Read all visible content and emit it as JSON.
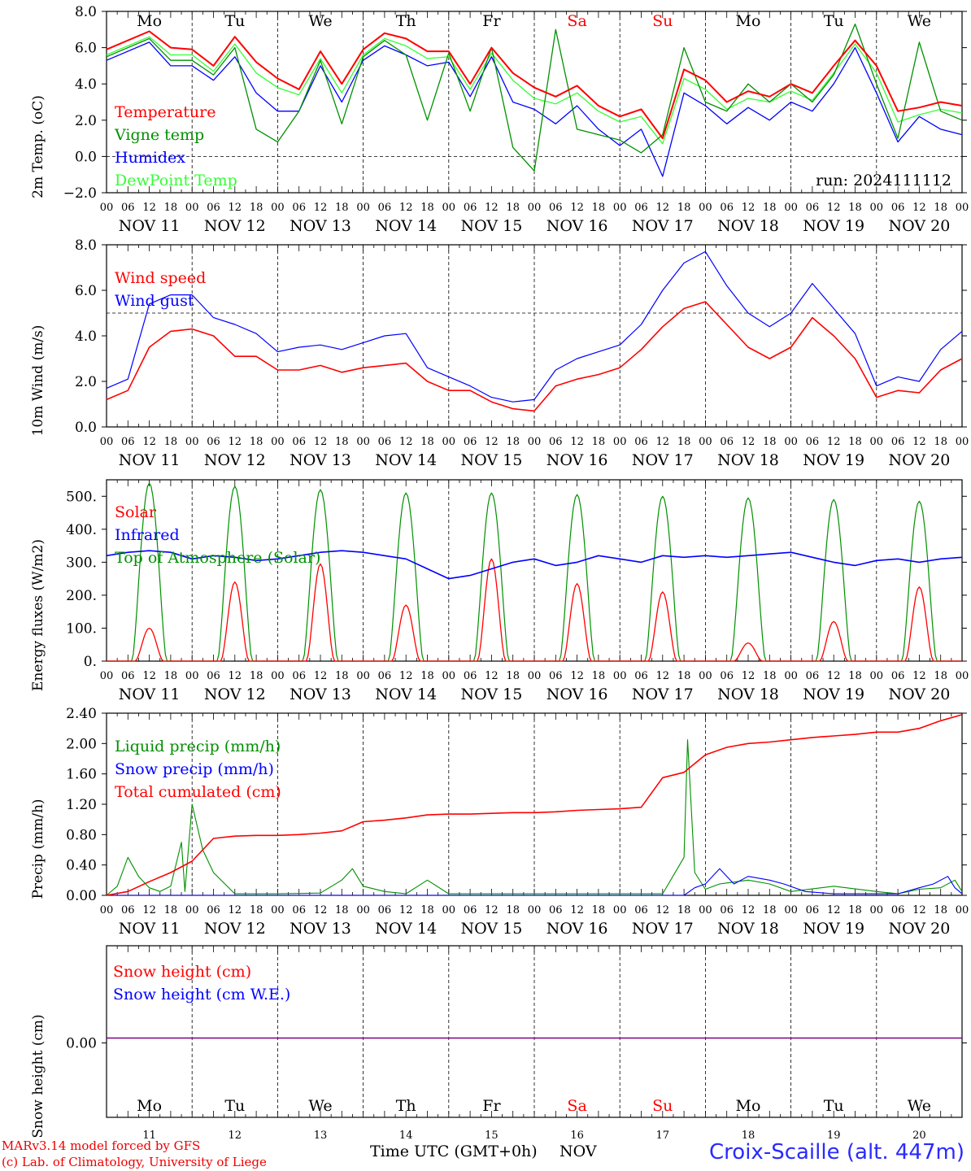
{
  "run_label": "run: 2024111112",
  "day_abbrevs": [
    "Mo",
    "Tu",
    "We",
    "Th",
    "Fr",
    "Sa",
    "Su",
    "Mo",
    "Tu",
    "We"
  ],
  "weekend_days": [
    5,
    6
  ],
  "date_labels": [
    "NOV 11",
    "NOV 12",
    "NOV 13",
    "NOV 14",
    "NOV 15",
    "NOV 16",
    "NOV 17",
    "NOV 18",
    "NOV 19",
    "NOV 20"
  ],
  "hour_labels": [
    "00",
    "06",
    "12",
    "18"
  ],
  "bottom_day_numbers": [
    "11",
    "12",
    "13",
    "14",
    "15",
    "16",
    "17",
    "18",
    "19",
    "20"
  ],
  "bottom_month": "NOV",
  "time_axis_label": "Time UTC (GMT+0h)",
  "credit_line1": "MARv3.14 model forced by GFS",
  "credit_line2": "(c) Lab. of Climatology, University of Liege",
  "station_label": "Croix-Scaille (alt. 447m)",
  "colors": {
    "red": "#ff0000",
    "green": "#009000",
    "blue": "#0000ff",
    "lightgreen": "#33ff33",
    "purple": "#800080"
  },
  "chart_data": [
    {
      "type": "line",
      "ylabel": "2m Temp. (oC)",
      "ylim": [
        -2,
        8
      ],
      "yticks": [
        "8.0",
        "6.0",
        "4.0",
        "2.0",
        "0.0",
        "−2.0"
      ],
      "ytick_values": [
        8,
        6,
        4,
        2,
        0,
        -2
      ],
      "hline": 0,
      "x": [
        0,
        12,
        18,
        24,
        30,
        36,
        42,
        48,
        54,
        60,
        66,
        72,
        78,
        84,
        90,
        96,
        102,
        108,
        114,
        120,
        126,
        132,
        138,
        144,
        150,
        156,
        162,
        168,
        174,
        180,
        186,
        192,
        198,
        204,
        210,
        216,
        222,
        228,
        234,
        240
      ],
      "x_unit": "hours since NOV 11 00 UTC",
      "series": [
        {
          "name": "Temperature",
          "color": "#ff0000",
          "values": [
            5.9,
            6.9,
            6.0,
            5.9,
            5.0,
            6.6,
            5.2,
            4.3,
            3.7,
            5.8,
            4.0,
            5.9,
            6.8,
            6.5,
            5.8,
            5.8,
            4.0,
            6.0,
            4.6,
            3.8,
            3.3,
            3.9,
            2.8,
            2.2,
            2.6,
            1.0,
            4.8,
            4.2,
            3.0,
            3.6,
            3.3,
            4.0,
            3.5,
            5.0,
            6.4,
            5.0,
            2.5,
            2.7,
            3.0,
            2.8
          ]
        },
        {
          "name": "Vigne temp",
          "color": "#009000",
          "values": [
            5.5,
            6.5,
            5.3,
            5.3,
            4.5,
            6.0,
            1.5,
            0.8,
            2.5,
            5.3,
            1.8,
            5.5,
            6.4,
            5.6,
            2.0,
            5.7,
            2.5,
            6.0,
            0.5,
            -0.8,
            7.0,
            1.5,
            1.2,
            0.9,
            0.2,
            1.2,
            6.0,
            3.0,
            2.5,
            4.0,
            3.0,
            4.0,
            3.0,
            4.5,
            7.3,
            4.0,
            1.0,
            6.3,
            2.5,
            2.0
          ]
        },
        {
          "name": "Humidex",
          "color": "#0000ff",
          "values": [
            5.3,
            6.3,
            5.0,
            5.0,
            4.2,
            5.5,
            3.5,
            2.5,
            2.5,
            5.0,
            3.0,
            5.3,
            6.1,
            5.6,
            5.0,
            5.2,
            3.3,
            5.5,
            3.0,
            2.6,
            1.8,
            2.8,
            1.5,
            0.6,
            1.5,
            -1.1,
            3.5,
            2.8,
            1.8,
            2.7,
            2.0,
            3.0,
            2.5,
            4.0,
            6.0,
            3.5,
            0.8,
            2.2,
            1.5,
            1.2
          ]
        },
        {
          "name": "DewPoint Temp",
          "color": "#33ff33",
          "values": [
            5.6,
            6.6,
            5.6,
            5.6,
            4.7,
            6.2,
            4.6,
            3.8,
            3.4,
            5.4,
            3.5,
            5.6,
            6.5,
            6.1,
            5.4,
            5.5,
            3.7,
            5.7,
            4.2,
            3.2,
            2.9,
            3.5,
            2.5,
            1.9,
            2.2,
            0.7,
            4.3,
            3.7,
            2.6,
            3.2,
            3.0,
            3.6,
            3.1,
            4.6,
            6.2,
            4.6,
            1.9,
            2.3,
            2.6,
            2.4
          ]
        }
      ]
    },
    {
      "type": "line",
      "ylabel": "10m Wind (m/s)",
      "ylim": [
        0,
        8
      ],
      "yticks": [
        "8.0",
        "6.0",
        "4.0",
        "2.0",
        "0.0"
      ],
      "ytick_values": [
        8,
        6,
        4,
        2,
        0
      ],
      "hline": 5,
      "x": [
        0,
        6,
        12,
        18,
        24,
        30,
        36,
        42,
        48,
        54,
        60,
        66,
        72,
        78,
        84,
        90,
        96,
        102,
        108,
        114,
        120,
        126,
        132,
        138,
        144,
        150,
        156,
        162,
        168,
        174,
        180,
        186,
        192,
        198,
        204,
        210,
        216,
        222,
        228,
        234,
        240
      ],
      "series": [
        {
          "name": "Wind speed",
          "color": "#ff0000",
          "values": [
            1.2,
            1.6,
            3.5,
            4.2,
            4.3,
            4.0,
            3.1,
            3.1,
            2.5,
            2.5,
            2.7,
            2.4,
            2.6,
            2.7,
            2.8,
            2.0,
            1.6,
            1.6,
            1.1,
            0.8,
            0.7,
            1.8,
            2.1,
            2.3,
            2.6,
            3.4,
            4.4,
            5.2,
            5.5,
            4.5,
            3.5,
            3.0,
            3.5,
            4.8,
            4.0,
            3.0,
            1.3,
            1.6,
            1.5,
            2.5,
            3.0
          ]
        },
        {
          "name": "Wind gust",
          "color": "#0000ff",
          "values": [
            1.7,
            2.1,
            5.4,
            5.8,
            5.8,
            4.8,
            4.5,
            4.1,
            3.3,
            3.5,
            3.6,
            3.4,
            3.7,
            4.0,
            4.1,
            2.6,
            2.2,
            1.8,
            1.3,
            1.1,
            1.2,
            2.5,
            3.0,
            3.3,
            3.6,
            4.5,
            6.0,
            7.2,
            7.7,
            6.2,
            5.0,
            4.4,
            5.0,
            6.3,
            5.2,
            4.1,
            1.8,
            2.2,
            2.0,
            3.4,
            4.2
          ]
        }
      ]
    },
    {
      "type": "line",
      "ylabel": "Energy fluxes (W/m2)",
      "ylim": [
        0,
        550
      ],
      "yticks": [
        "500.",
        "400.",
        "300.",
        "200.",
        "100.",
        "0."
      ],
      "ytick_values": [
        500,
        400,
        300,
        200,
        100,
        0
      ],
      "solar_peaks": [
        100,
        240,
        295,
        170,
        310,
        235,
        210,
        55,
        120,
        225
      ],
      "toa_peaks": [
        540,
        530,
        520,
        510,
        510,
        505,
        500,
        495,
        490,
        485
      ],
      "infrared_values": [
        320,
        330,
        335,
        330,
        310,
        320,
        315,
        305,
        310,
        320,
        330,
        335,
        330,
        320,
        310,
        280,
        250,
        260,
        280,
        300,
        310,
        290,
        300,
        320,
        310,
        300,
        320,
        315,
        320,
        315,
        320,
        325,
        330,
        315,
        300,
        290,
        305,
        310,
        300,
        310,
        315
      ],
      "series": [
        {
          "name": "Solar",
          "color": "#ff0000"
        },
        {
          "name": "Infrared",
          "color": "#0000ff"
        },
        {
          "name": "Top of Atmosphere (Solar)",
          "color": "#009000"
        }
      ]
    },
    {
      "type": "line",
      "ylabel": "Precip (mm/h)",
      "ylim": [
        0,
        2.4
      ],
      "yticks": [
        "2.40",
        "2.00",
        "1.60",
        "1.20",
        "0.80",
        "0.40",
        "0.00"
      ],
      "ytick_values": [
        2.4,
        2.0,
        1.6,
        1.2,
        0.8,
        0.4,
        0.0
      ],
      "cumul_x": [
        0,
        6,
        12,
        18,
        24,
        30,
        36,
        42,
        48,
        54,
        60,
        66,
        72,
        78,
        84,
        90,
        96,
        102,
        108,
        114,
        120,
        126,
        132,
        138,
        144,
        150,
        156,
        162,
        168,
        174,
        180,
        186,
        192,
        198,
        204,
        210,
        216,
        222,
        228,
        234,
        240
      ],
      "cumul_values": [
        0.0,
        0.05,
        0.18,
        0.3,
        0.45,
        0.75,
        0.78,
        0.79,
        0.79,
        0.8,
        0.82,
        0.85,
        0.97,
        0.99,
        1.02,
        1.06,
        1.07,
        1.07,
        1.08,
        1.09,
        1.09,
        1.1,
        1.12,
        1.13,
        1.14,
        1.16,
        1.55,
        1.62,
        1.85,
        1.95,
        2.0,
        2.02,
        2.05,
        2.08,
        2.1,
        2.12,
        2.15,
        2.15,
        2.2,
        2.3,
        2.38
      ],
      "liquid_x": [
        0,
        3,
        6,
        9,
        12,
        15,
        18,
        21,
        22,
        24,
        27,
        30,
        36,
        48,
        60,
        66,
        69,
        72,
        78,
        84,
        90,
        96,
        102,
        114,
        132,
        156,
        162,
        163,
        165,
        168,
        172,
        180,
        186,
        192,
        204,
        216,
        222,
        228,
        234,
        238,
        240
      ],
      "liquid_values": [
        0.0,
        0.12,
        0.5,
        0.25,
        0.1,
        0.05,
        0.12,
        0.7,
        0.05,
        1.2,
        0.6,
        0.3,
        0.02,
        0.02,
        0.03,
        0.2,
        0.35,
        0.12,
        0.05,
        0.02,
        0.2,
        0.02,
        0.02,
        0.02,
        0.02,
        0.02,
        0.5,
        2.05,
        0.3,
        0.08,
        0.15,
        0.2,
        0.15,
        0.05,
        0.12,
        0.05,
        0.02,
        0.08,
        0.1,
        0.2,
        0.05
      ],
      "snow_x": [
        0,
        96,
        156,
        162,
        165,
        168,
        172,
        176,
        180,
        186,
        190,
        196,
        204,
        222,
        228,
        232,
        236,
        238,
        240
      ],
      "snow_values": [
        0,
        0,
        0,
        0,
        0.1,
        0.15,
        0.35,
        0.15,
        0.25,
        0.2,
        0.15,
        0.05,
        0.02,
        0.02,
        0.1,
        0.15,
        0.25,
        0.1,
        0.02
      ],
      "series": [
        {
          "name": "Liquid precip (mm/h)",
          "color": "#009000"
        },
        {
          "name": "Snow precip (mm/h)",
          "color": "#0000ff"
        },
        {
          "name": "Total cumulated (cm)",
          "color": "#ff0000"
        }
      ]
    },
    {
      "type": "line",
      "ylabel": "Snow height (cm)",
      "yticks": [
        "0.00"
      ],
      "ytick_values": [
        0
      ],
      "values": [
        0,
        0
      ],
      "series": [
        {
          "name": "Snow height (cm)",
          "color": "#ff0000"
        },
        {
          "name": "Snow height (cm W.E.)",
          "color": "#0000ff"
        }
      ]
    }
  ]
}
